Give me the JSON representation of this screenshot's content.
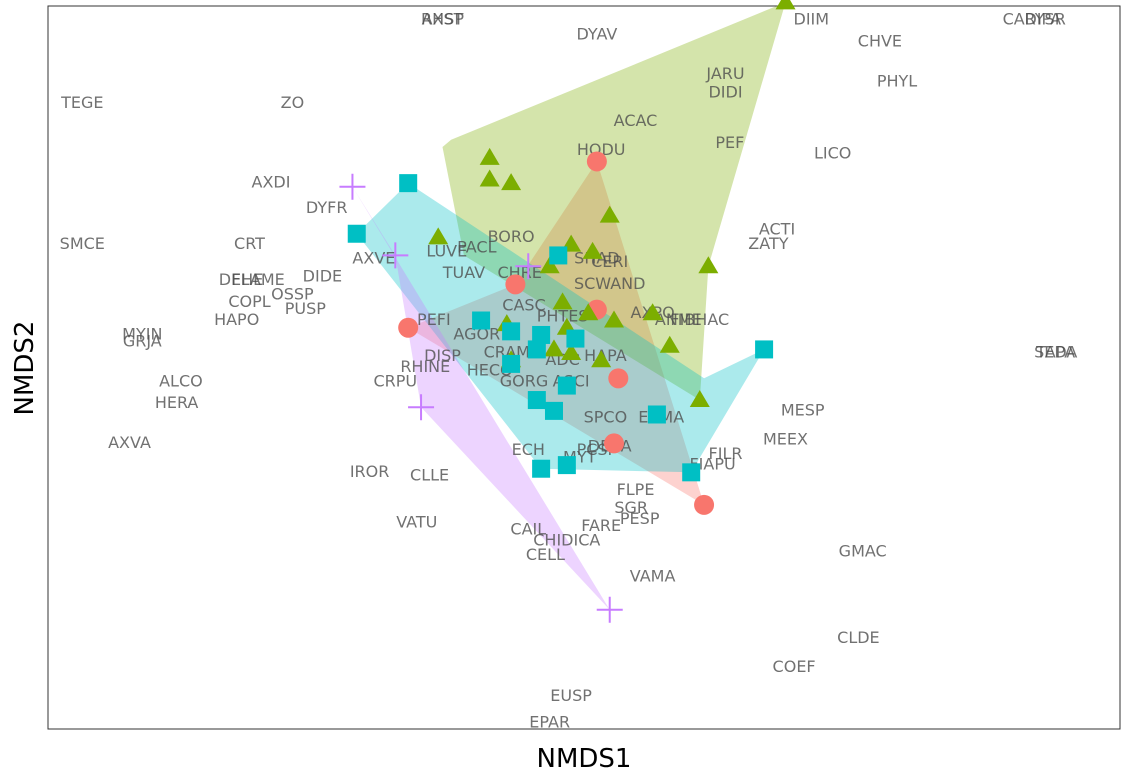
{
  "chart_data": {
    "type": "scatter",
    "title": "",
    "xlabel": "NMDS1",
    "ylabel": "NMDS2",
    "xlim": [
      -1.35,
      1.15
    ],
    "ylim": [
      -1.0,
      1.0
    ],
    "grid": false,
    "legend": "none",
    "series": [
      {
        "color": "#F8766D",
        "shape": "circle",
        "points": [
          [
            -0.26,
            0.23
          ],
          [
            -0.07,
            0.57
          ],
          [
            -0.51,
            0.11
          ],
          [
            -0.07,
            0.16
          ],
          [
            -0.03,
            -0.21
          ],
          [
            0.18,
            -0.38
          ],
          [
            -0.02,
            -0.03
          ]
        ],
        "hull": [
          [
            -0.26,
            0.23
          ],
          [
            -0.07,
            0.57
          ],
          [
            0.18,
            -0.38
          ],
          [
            -0.51,
            0.11
          ]
        ]
      },
      {
        "color": "#7CAE00",
        "shape": "triangle",
        "points": [
          [
            -0.32,
            0.52
          ],
          [
            -0.27,
            0.51
          ],
          [
            -0.18,
            0.28
          ],
          [
            -0.13,
            0.34
          ],
          [
            -0.08,
            0.32
          ],
          [
            -0.03,
            0.13
          ],
          [
            -0.14,
            0.11
          ],
          [
            -0.15,
            0.18
          ],
          [
            -0.17,
            0.05
          ],
          [
            -0.09,
            0.15
          ],
          [
            0.06,
            0.15
          ],
          [
            0.19,
            0.28
          ],
          [
            0.37,
            1.01
          ],
          [
            0.1,
            0.06
          ],
          [
            -0.44,
            0.36
          ],
          [
            -0.32,
            0.58
          ],
          [
            -0.04,
            0.42
          ],
          [
            -0.27,
            0.02
          ],
          [
            -0.28,
            0.12
          ],
          [
            -0.13,
            0.04
          ],
          [
            -0.06,
            0.02
          ],
          [
            0.17,
            -0.09
          ]
        ],
        "hull": [
          [
            0.37,
            1.01
          ],
          [
            0.19,
            0.28
          ],
          [
            0.17,
            -0.09
          ],
          [
            -0.38,
            0.31
          ],
          [
            -0.43,
            0.61
          ],
          [
            -0.41,
            0.63
          ]
        ]
      },
      {
        "color": "#00BFC4",
        "shape": "square",
        "points": [
          [
            -0.51,
            0.51
          ],
          [
            -0.63,
            0.37
          ],
          [
            -0.34,
            0.13
          ],
          [
            -0.27,
            0.1
          ],
          [
            -0.16,
            0.31
          ],
          [
            -0.2,
            0.09
          ],
          [
            -0.21,
            0.05
          ],
          [
            -0.17,
            -0.12
          ],
          [
            0.32,
            0.05
          ],
          [
            -0.14,
            -0.05
          ],
          [
            -0.27,
            0.01
          ],
          [
            -0.21,
            -0.09
          ],
          [
            0.07,
            -0.13
          ],
          [
            -0.12,
            0.08
          ],
          [
            0.15,
            -0.29
          ],
          [
            -0.2,
            -0.28
          ],
          [
            -0.14,
            -0.27
          ]
        ],
        "hull": [
          [
            -0.51,
            0.51
          ],
          [
            -0.63,
            0.37
          ],
          [
            -0.2,
            -0.28
          ],
          [
            0.15,
            -0.29
          ],
          [
            0.32,
            0.05
          ],
          [
            0.18,
            -0.03
          ]
        ]
      },
      {
        "color": "#C77CFF",
        "shape": "cross",
        "points": [
          [
            -0.64,
            0.5
          ],
          [
            -0.54,
            0.31
          ],
          [
            -0.48,
            -0.11
          ],
          [
            -0.23,
            0.28
          ],
          [
            -0.04,
            -0.67
          ]
        ],
        "hull": [
          [
            -0.64,
            0.5
          ],
          [
            -0.04,
            -0.67
          ],
          [
            -0.48,
            -0.11
          ],
          [
            -0.54,
            0.31
          ]
        ]
      }
    ],
    "labels": [
      {
        "t": "CARYSR",
        "x": 0.95,
        "y": 1.09
      },
      {
        "t": "DIPA",
        "x": 0.97,
        "y": 1.07
      },
      {
        "t": "DIIM",
        "x": 0.43,
        "y": 1.04
      },
      {
        "t": "RHSP",
        "x": -0.43,
        "y": 1.01
      },
      {
        "t": "AXST",
        "x": -0.43,
        "y": 0.99
      },
      {
        "t": "DYAV",
        "x": -0.07,
        "y": 0.92
      },
      {
        "t": "CHVE",
        "x": 0.59,
        "y": 0.9
      },
      {
        "t": "JARU",
        "x": 0.23,
        "y": 0.81
      },
      {
        "t": "PHYL",
        "x": 0.63,
        "y": 0.79
      },
      {
        "t": "TEGE",
        "x": -1.27,
        "y": 0.73
      },
      {
        "t": "ZO",
        "x": -0.78,
        "y": 0.73
      },
      {
        "t": "DIDI",
        "x": 0.23,
        "y": 0.76
      },
      {
        "t": "ACAC",
        "x": 0.02,
        "y": 0.68
      },
      {
        "t": "PEF",
        "x": 0.24,
        "y": 0.62
      },
      {
        "t": "HODU",
        "x": -0.06,
        "y": 0.6
      },
      {
        "t": "LICO",
        "x": 0.48,
        "y": 0.59
      },
      {
        "t": "AXDI",
        "x": -0.83,
        "y": 0.51
      },
      {
        "t": "DYFR",
        "x": -0.7,
        "y": 0.44
      },
      {
        "t": "ACTI",
        "x": 0.35,
        "y": 0.38
      },
      {
        "t": "ZATY",
        "x": 0.33,
        "y": 0.34
      },
      {
        "t": "BORO",
        "x": -0.27,
        "y": 0.36
      },
      {
        "t": "PACL",
        "x": -0.35,
        "y": 0.33
      },
      {
        "t": "LUVE",
        "x": -0.42,
        "y": 0.32
      },
      {
        "t": "SMCE",
        "x": -1.27,
        "y": 0.34
      },
      {
        "t": "CRT",
        "x": -0.88,
        "y": 0.34
      },
      {
        "t": "SHAD",
        "x": -0.07,
        "y": 0.3
      },
      {
        "t": "AXVE",
        "x": -0.59,
        "y": 0.3
      },
      {
        "t": "CERI",
        "x": -0.04,
        "y": 0.29
      },
      {
        "t": "TUAV",
        "x": -0.38,
        "y": 0.26
      },
      {
        "t": "CHRE",
        "x": -0.25,
        "y": 0.26
      },
      {
        "t": "DEHE",
        "x": -0.9,
        "y": 0.24
      },
      {
        "t": "FLAME",
        "x": -0.86,
        "y": 0.24
      },
      {
        "t": "DIDE",
        "x": -0.71,
        "y": 0.25
      },
      {
        "t": "OSSP",
        "x": -0.78,
        "y": 0.2
      },
      {
        "t": "SCWAND",
        "x": -0.04,
        "y": 0.23
      },
      {
        "t": "CASC",
        "x": -0.24,
        "y": 0.17
      },
      {
        "t": "COPL",
        "x": -0.88,
        "y": 0.18
      },
      {
        "t": "PUSP",
        "x": -0.75,
        "y": 0.16
      },
      {
        "t": "HAPO",
        "x": -0.91,
        "y": 0.13
      },
      {
        "t": "MYIN",
        "x": -1.13,
        "y": 0.09
      },
      {
        "t": "GRJA",
        "x": -1.13,
        "y": 0.07
      },
      {
        "t": "AXPO",
        "x": 0.06,
        "y": 0.15
      },
      {
        "t": "PHTES",
        "x": -0.15,
        "y": 0.14
      },
      {
        "t": "PEFI",
        "x": -0.45,
        "y": 0.13
      },
      {
        "t": "ANME",
        "x": 0.12,
        "y": 0.13
      },
      {
        "t": "FIBHAC",
        "x": 0.17,
        "y": 0.13
      },
      {
        "t": "AGOR",
        "x": -0.35,
        "y": 0.09
      },
      {
        "t": "ADC",
        "x": -0.15,
        "y": 0.02
      },
      {
        "t": "DISP",
        "x": -0.43,
        "y": 0.03
      },
      {
        "t": "CRAM",
        "x": -0.28,
        "y": 0.04
      },
      {
        "t": "RHINE",
        "x": -0.47,
        "y": 0.0
      },
      {
        "t": "HAPA",
        "x": -0.05,
        "y": 0.03
      },
      {
        "t": "HECO",
        "x": -0.32,
        "y": -0.01
      },
      {
        "t": "ALCO",
        "x": -1.04,
        "y": -0.04
      },
      {
        "t": "CRPU",
        "x": -0.54,
        "y": -0.04
      },
      {
        "t": "GORG",
        "x": -0.24,
        "y": -0.04
      },
      {
        "t": "ASCI",
        "x": -0.13,
        "y": -0.04
      },
      {
        "t": "HERA",
        "x": -1.05,
        "y": -0.1
      },
      {
        "t": "MESP",
        "x": 0.41,
        "y": -0.12
      },
      {
        "t": "ERMA",
        "x": 0.08,
        "y": -0.14
      },
      {
        "t": "MEEX",
        "x": 0.37,
        "y": -0.2
      },
      {
        "t": "SPCO",
        "x": -0.05,
        "y": -0.14
      },
      {
        "t": "DESA",
        "x": -0.04,
        "y": -0.22
      },
      {
        "t": "AXVA",
        "x": -1.16,
        "y": -0.21
      },
      {
        "t": "FILR",
        "x": 0.23,
        "y": -0.24
      },
      {
        "t": "FIAPU",
        "x": 0.2,
        "y": -0.27
      },
      {
        "t": "PCSP",
        "x": -0.07,
        "y": -0.23
      },
      {
        "t": "MYT",
        "x": -0.11,
        "y": -0.25
      },
      {
        "t": "ECH",
        "x": -0.23,
        "y": -0.23
      },
      {
        "t": "IROR",
        "x": -0.6,
        "y": -0.29
      },
      {
        "t": "CLLE",
        "x": -0.46,
        "y": -0.3
      },
      {
        "t": "FLPE",
        "x": 0.02,
        "y": -0.34
      },
      {
        "t": "SGR",
        "x": 0.01,
        "y": -0.39
      },
      {
        "t": "PESP",
        "x": 0.03,
        "y": -0.42
      },
      {
        "t": "VATU",
        "x": -0.49,
        "y": -0.43
      },
      {
        "t": "CAIL",
        "x": -0.23,
        "y": -0.45
      },
      {
        "t": "FARE",
        "x": -0.06,
        "y": -0.44
      },
      {
        "t": "CHIDICA",
        "x": -0.14,
        "y": -0.48
      },
      {
        "t": "CELL",
        "x": -0.19,
        "y": -0.52
      },
      {
        "t": "GMAC",
        "x": 0.55,
        "y": -0.51
      },
      {
        "t": "VAMA",
        "x": 0.06,
        "y": -0.58
      },
      {
        "t": "CLDE",
        "x": 0.54,
        "y": -0.75
      },
      {
        "t": "COEF",
        "x": 0.39,
        "y": -0.83
      },
      {
        "t": "EUSP",
        "x": -0.13,
        "y": -0.91
      },
      {
        "t": "EPAR",
        "x": -0.18,
        "y": -1.02
      },
      {
        "t": "TAPA",
        "x": 1.0,
        "y": 0.04
      },
      {
        "t": "SEDA",
        "x": 1.0,
        "y": 0.04
      }
    ]
  }
}
